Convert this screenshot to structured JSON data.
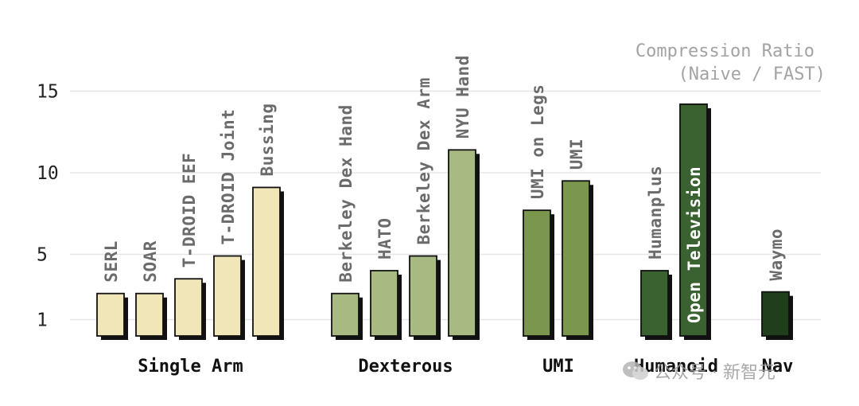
{
  "chart_data": {
    "type": "bar",
    "legend": [
      "Compression Ratio",
      "(Naive / FAST)"
    ],
    "y_ticks": [
      "1",
      "5",
      "10",
      "15"
    ],
    "ylim": [
      0,
      16
    ],
    "grid": true,
    "groups": [
      {
        "name": "Single Arm",
        "color": "#f1e6b8",
        "bars": [
          {
            "label": "SERL",
            "value": 2.6
          },
          {
            "label": "SOAR",
            "value": 2.6
          },
          {
            "label": "T-DROID EEF",
            "value": 3.5
          },
          {
            "label": "T-DROID Joint",
            "value": 4.9
          },
          {
            "label": "Bussing",
            "value": 9.1
          }
        ]
      },
      {
        "name": "Dexterous",
        "color": "#a8ba82",
        "bars": [
          {
            "label": "Berkeley Dex Hand",
            "value": 2.6
          },
          {
            "label": "HATO",
            "value": 4.0
          },
          {
            "label": "Berkeley Dex Arm",
            "value": 4.9
          },
          {
            "label": "NYU Hand",
            "value": 11.4
          }
        ]
      },
      {
        "name": "UMI",
        "color": "#7b964d",
        "bars": [
          {
            "label": "UMI on Legs",
            "value": 7.7
          },
          {
            "label": "UMI",
            "value": 9.5
          }
        ]
      },
      {
        "name": "Humanoid",
        "color": "#3a6130",
        "bars": [
          {
            "label": "Humanplus",
            "value": 4.0
          },
          {
            "label": "Open Television",
            "value": 14.2,
            "label_inside": true
          }
        ]
      },
      {
        "name": "Nav",
        "color": "#213e1c",
        "bars": [
          {
            "label": "Waymo",
            "value": 2.7
          }
        ]
      }
    ]
  },
  "watermark": {
    "text": "公众号 · 新智元"
  }
}
